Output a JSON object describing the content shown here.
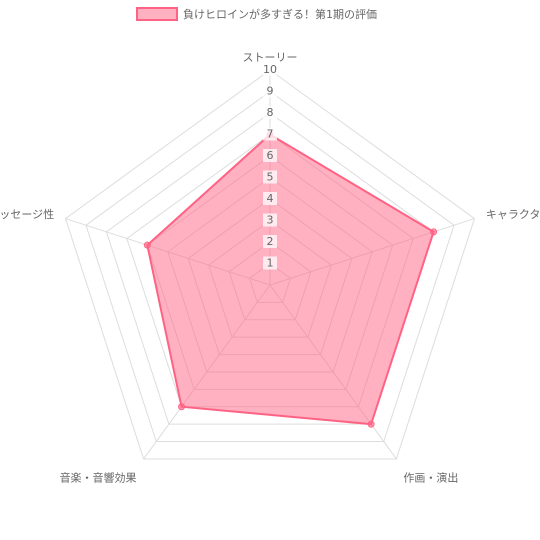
{
  "chart_data": {
    "type": "radar",
    "categories": [
      "ストーリー",
      "キャラクター",
      "作画・演出",
      "音楽・音響効果",
      "メッセージ性"
    ],
    "series": [
      {
        "name": "負けヒロインが多すぎる！第1期の評価",
        "color": "#ff6384",
        "values": [
          7,
          8,
          8,
          7,
          6
        ]
      }
    ],
    "ylim": [
      0,
      10
    ],
    "yticks": [
      1,
      2,
      3,
      4,
      5,
      6,
      7,
      8,
      9,
      10
    ],
    "grid": true,
    "legend": "top"
  }
}
